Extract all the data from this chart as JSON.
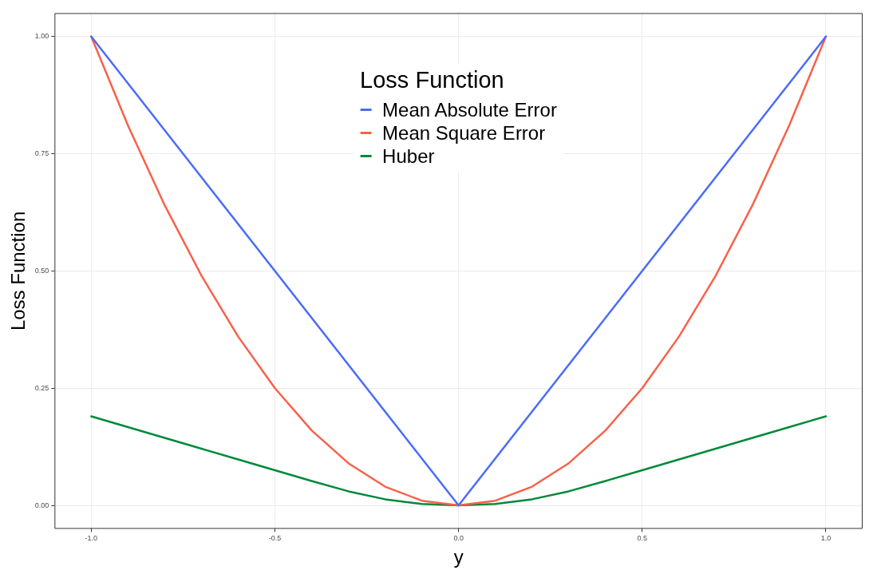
{
  "chart_data": {
    "type": "line",
    "xlabel": "y",
    "ylabel": "Loss Function",
    "legend_title": "Loss Function",
    "legend": "top",
    "grid": true,
    "marker": "none",
    "line_style": "solid",
    "xlim": [
      -1.1,
      1.1
    ],
    "ylim": [
      -0.05,
      1.05
    ],
    "xticks": [
      {
        "value": -1,
        "label": "-1.0"
      },
      {
        "value": -0.5,
        "label": "-0.5"
      },
      {
        "value": 0,
        "label": "0.0"
      },
      {
        "value": 0.5,
        "label": "0.5"
      },
      {
        "value": 1,
        "label": "1.0"
      }
    ],
    "yticks": [
      {
        "value": 0,
        "label": "0.00"
      },
      {
        "value": 0.25,
        "label": "0.25"
      },
      {
        "value": 0.5,
        "label": "0.50"
      },
      {
        "value": 0.75,
        "label": "0.75"
      },
      {
        "value": 1,
        "label": "1.00"
      }
    ],
    "series": [
      {
        "name": "Mean Absolute Error",
        "color": "#4a6cf7",
        "x": [
          -1,
          0,
          1
        ],
        "values": [
          1,
          0,
          1
        ]
      },
      {
        "name": "Mean Square Error",
        "color": "#f8614a",
        "x": [
          -1,
          -0.9,
          -0.8,
          -0.7,
          -0.6,
          -0.5,
          -0.4,
          -0.3,
          -0.2,
          -0.1,
          0,
          0.1,
          0.2,
          0.3,
          0.4,
          0.5,
          0.6,
          0.7,
          0.8,
          0.9,
          1
        ],
        "values": [
          1,
          0.81,
          0.64,
          0.49,
          0.36,
          0.25,
          0.16,
          0.09,
          0.04,
          0.01,
          0,
          0.01,
          0.04,
          0.09,
          0.16,
          0.25,
          0.36,
          0.49,
          0.64,
          0.81,
          1
        ]
      },
      {
        "name": "Huber",
        "color": "#00893a",
        "x": [
          -1,
          -0.9,
          -0.8,
          -0.7,
          -0.6,
          -0.5,
          -0.4,
          -0.3,
          -0.2,
          -0.1,
          0,
          0.1,
          0.2,
          0.3,
          0.4,
          0.5,
          0.6,
          0.7,
          0.8,
          0.9,
          1
        ],
        "values": [
          0.19,
          0.167,
          0.144,
          0.121,
          0.098,
          0.075,
          0.052,
          0.03,
          0.013,
          0.003,
          0,
          0.003,
          0.013,
          0.03,
          0.052,
          0.075,
          0.098,
          0.121,
          0.144,
          0.167,
          0.19
        ]
      }
    ]
  }
}
